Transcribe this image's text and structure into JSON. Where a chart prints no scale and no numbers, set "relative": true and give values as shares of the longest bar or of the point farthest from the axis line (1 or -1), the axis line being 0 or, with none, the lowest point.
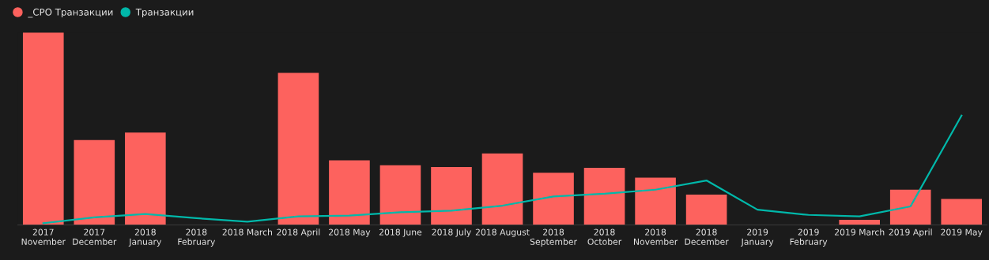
{
  "chart_data": {
    "type": "bar",
    "relative": true,
    "legend": "top left",
    "grid": false,
    "categories": [
      "2017\nNovember",
      "2017\nDecember",
      "2018\nJanuary",
      "2018\nFebruary",
      "2018 March",
      "2018 April",
      "2018 May",
      "2018 June",
      "2018 July",
      "2018 August",
      "2018\nSeptember",
      "2018\nOctober",
      "2018\nNovember",
      "2018\nDecember",
      "2019\nJanuary",
      "2019\nFebruary",
      "2019 March",
      "2019 April",
      "2019 May"
    ],
    "series": [
      {
        "name": "_CPO Транзакции",
        "color": "#fd625e",
        "values": [
          1,
          0.441,
          0.48,
          null,
          null,
          0.79,
          0.336,
          0.31,
          0.301,
          0.371,
          0.271,
          0.297,
          0.245,
          0.157,
          null,
          null,
          0.026,
          0.183,
          0.135
        ]
      },
      {
        "name": "Транзакции",
        "type": "line",
        "color": "#01b8aa",
        "marker": "none",
        "line_style": "solid",
        "values": [
          0.009,
          0.039,
          0.057,
          0.035,
          0.017,
          0.044,
          0.048,
          0.066,
          0.074,
          0.1,
          0.148,
          0.162,
          0.183,
          0.231,
          0.079,
          0.052,
          0.044,
          0.096,
          0.568
        ]
      }
    ]
  }
}
